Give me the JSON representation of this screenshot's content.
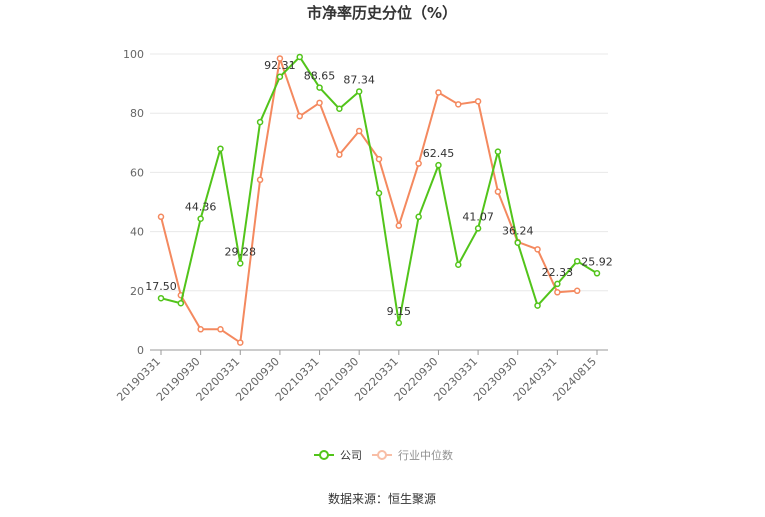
{
  "chart_data": {
    "type": "line",
    "title": "市净率历史分位（%）",
    "xlabel": "",
    "ylabel": "",
    "ylim": [
      0,
      100
    ],
    "yticks": [
      0,
      20,
      40,
      60,
      80,
      100
    ],
    "grid": true,
    "legend_position": "bottom",
    "x": [
      "20190331",
      "20190630",
      "20190930",
      "20191231",
      "20200331",
      "20200630",
      "20200930",
      "20201231",
      "20210331",
      "20210630",
      "20210930",
      "20211231",
      "20220331",
      "20220630",
      "20220930",
      "20221231",
      "20230331",
      "20230630",
      "20230930",
      "20231231",
      "20240331",
      "20240630",
      "20240815"
    ],
    "x_tick_labels": [
      "20190331",
      "20190930",
      "20200331",
      "20200930",
      "20210331",
      "20210930",
      "20220331",
      "20220930",
      "20230331",
      "20230930",
      "20240331",
      "20240815"
    ],
    "series": [
      {
        "name": "公司",
        "color": "#52c41a",
        "values": [
          17.5,
          15.8,
          44.36,
          68.0,
          29.28,
          77.0,
          92.31,
          99.0,
          88.65,
          81.5,
          87.34,
          53.0,
          9.15,
          45.0,
          62.45,
          28.8,
          41.07,
          67.0,
          36.24,
          15.0,
          22.33,
          30.0,
          25.92
        ],
        "data_labels": {
          "0": "17.50",
          "2": "44.36",
          "4": "29.28",
          "6": "92.31",
          "8": "88.65",
          "10": "87.34",
          "12": "9.15",
          "14": "62.45",
          "16": "41.07",
          "18": "36.24",
          "20": "22.33",
          "22": "25.92"
        }
      },
      {
        "name": "行业中位数",
        "color": "#f4895f",
        "values": [
          45.0,
          18.5,
          7.0,
          7.0,
          2.5,
          57.5,
          98.5,
          79.0,
          83.5,
          66.0,
          74.0,
          64.5,
          42.0,
          63.0,
          87.0,
          83.0,
          84.0,
          53.5,
          36.5,
          34.0,
          19.5,
          20.0,
          null
        ]
      }
    ]
  },
  "source": "数据来源：恒生聚源"
}
